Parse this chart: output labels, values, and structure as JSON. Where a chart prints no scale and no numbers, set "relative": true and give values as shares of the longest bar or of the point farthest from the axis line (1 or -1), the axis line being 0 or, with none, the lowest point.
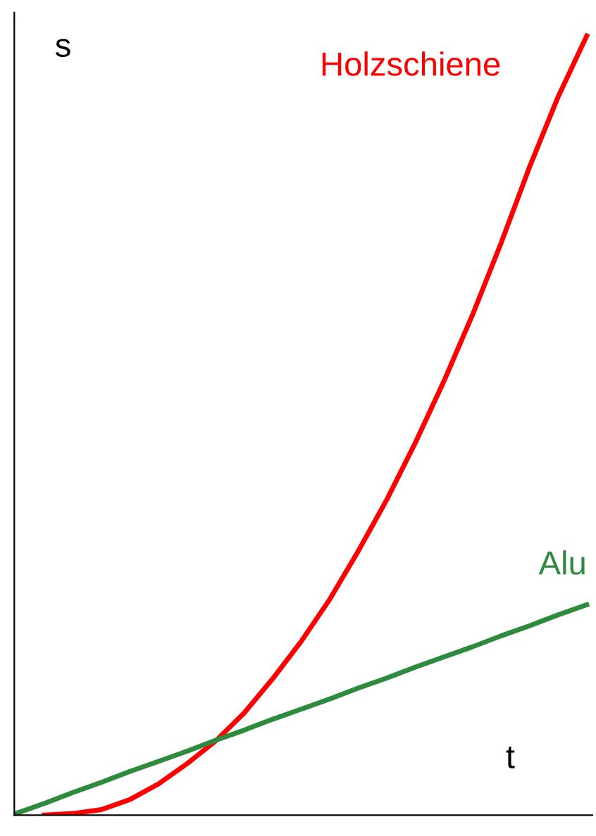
{
  "chart_data": {
    "type": "line",
    "relative": true,
    "xlabel": "t",
    "ylabel": "s",
    "legend": false,
    "marker": "none",
    "line_style": "solid",
    "categories": [
      null,
      null,
      null,
      null,
      null,
      null,
      null,
      null,
      null,
      null,
      null,
      null,
      null,
      null,
      null,
      null,
      null,
      null,
      null,
      null,
      null
    ],
    "series": [
      {
        "name": "Holzschiene",
        "color": "#ff0000",
        "values": [
          null,
          0,
          0.002,
          0.007,
          0.02,
          0.04,
          0.066,
          0.095,
          0.131,
          0.175,
          0.223,
          0.277,
          0.339,
          0.405,
          0.478,
          0.557,
          0.642,
          0.734,
          0.832,
          0.922,
          1
        ]
      },
      {
        "name": "Alu",
        "color": "#2e8b3e",
        "values": [
          0.002,
          0.015,
          0.029,
          0.042,
          0.056,
          0.069,
          0.082,
          0.096,
          0.109,
          0.123,
          0.136,
          0.149,
          0.163,
          0.176,
          0.19,
          0.203,
          0.216,
          0.23,
          0.243,
          0.257,
          0.27
        ]
      }
    ]
  }
}
